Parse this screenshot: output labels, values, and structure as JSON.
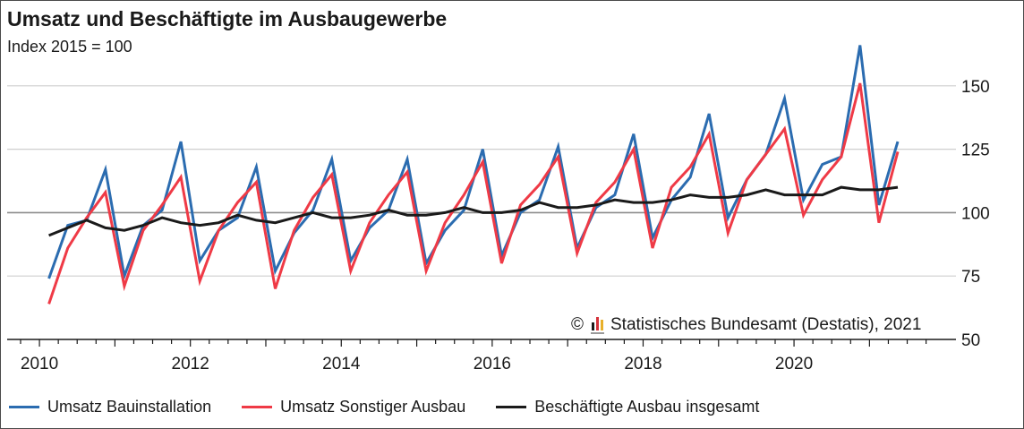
{
  "chart_data": {
    "type": "line",
    "title": "Umsatz und Beschäftigte im Ausbaugewerbe",
    "subtitle": "Index 2015 = 100",
    "x_ticks": [
      "2010",
      "2012",
      "2014",
      "2016",
      "2018",
      "2020"
    ],
    "y_ticks": [
      "50",
      "75",
      "100",
      "125",
      "150"
    ],
    "ylim": [
      50,
      175
    ],
    "xlim": [
      2009.5,
      2021.75
    ],
    "x_start": 2010.125,
    "x_step": 0.25,
    "source": "Statistisches Bundesamt (Destatis), 2021",
    "copyright_symbol": "©",
    "series": [
      {
        "name": "Umsatz Bauinstallation",
        "color": "#2b6cb0",
        "values": [
          74,
          95,
          97,
          117,
          75,
          95,
          101,
          128,
          81,
          93,
          98,
          118,
          77,
          92,
          101,
          121,
          81,
          94,
          101,
          121,
          80,
          93,
          101,
          125,
          83,
          100,
          105,
          126,
          86,
          102,
          107,
          131,
          90,
          105,
          114,
          139,
          98,
          113,
          123,
          145,
          105,
          119,
          122,
          166,
          103,
          128
        ]
      },
      {
        "name": "Umsatz Sonstiger Ausbau",
        "color": "#ef3a46",
        "values": [
          64,
          86,
          98,
          108,
          71,
          93,
          103,
          114,
          73,
          93,
          104,
          112,
          70,
          93,
          106,
          115,
          77,
          96,
          107,
          116,
          77,
          96,
          107,
          120,
          80,
          103,
          111,
          122,
          84,
          104,
          112,
          125,
          86,
          110,
          118,
          131,
          92,
          113,
          123,
          133,
          99,
          113,
          122,
          151,
          96,
          124
        ]
      },
      {
        "name": "Beschäftigte Ausbau insgesamt",
        "color": "#1a1a1a",
        "values": [
          91,
          94,
          97,
          94,
          93,
          95,
          98,
          96,
          95,
          96,
          99,
          97,
          96,
          98,
          100,
          98,
          98,
          99,
          101,
          99,
          99,
          100,
          102,
          100,
          100,
          101,
          104,
          102,
          102,
          103,
          105,
          104,
          104,
          105,
          107,
          106,
          106,
          107,
          109,
          107,
          107,
          107,
          110,
          109,
          109,
          110
        ]
      }
    ],
    "grid": true,
    "legend_position": "bottom"
  }
}
